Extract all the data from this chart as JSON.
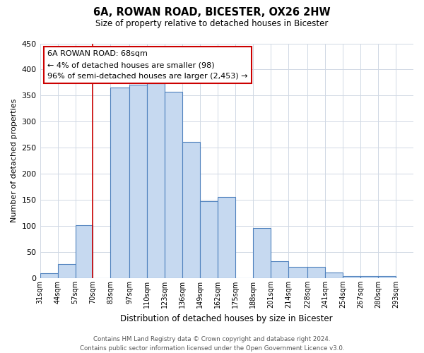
{
  "title": "6A, ROWAN ROAD, BICESTER, OX26 2HW",
  "subtitle": "Size of property relative to detached houses in Bicester",
  "xlabel": "Distribution of detached houses by size in Bicester",
  "ylabel": "Number of detached properties",
  "bar_heights": [
    10,
    27,
    101,
    0,
    365,
    371,
    374,
    357,
    261,
    148,
    155,
    0,
    96,
    32,
    22,
    22,
    11,
    4,
    4,
    4
  ],
  "bin_edges": [
    31,
    44,
    57,
    70,
    83,
    97,
    110,
    123,
    136,
    149,
    162,
    175,
    188,
    201,
    214,
    228,
    241,
    254,
    267,
    280,
    293
  ],
  "tick_labels": [
    "31sqm",
    "44sqm",
    "57sqm",
    "70sqm",
    "83sqm",
    "97sqm",
    "110sqm",
    "123sqm",
    "136sqm",
    "149sqm",
    "162sqm",
    "175sqm",
    "188sqm",
    "201sqm",
    "214sqm",
    "228sqm",
    "241sqm",
    "254sqm",
    "267sqm",
    "280sqm",
    "293sqm"
  ],
  "bar_color": "#c6d9f0",
  "bar_edge_color": "#4f81bd",
  "grid_color": "#d0d8e4",
  "background_color": "#ffffff",
  "ylim": [
    0,
    450
  ],
  "xlim_left": 31,
  "xlim_right": 306,
  "marker_x": 70,
  "marker_color": "#cc0000",
  "annotation_title": "6A ROWAN ROAD: 68sqm",
  "annotation_line1": "← 4% of detached houses are smaller (98)",
  "annotation_line2": "96% of semi-detached houses are larger (2,453) →",
  "annotation_box_color": "#ffffff",
  "annotation_box_edge": "#cc0000",
  "footer_line1": "Contains HM Land Registry data © Crown copyright and database right 2024.",
  "footer_line2": "Contains public sector information licensed under the Open Government Licence v3.0."
}
